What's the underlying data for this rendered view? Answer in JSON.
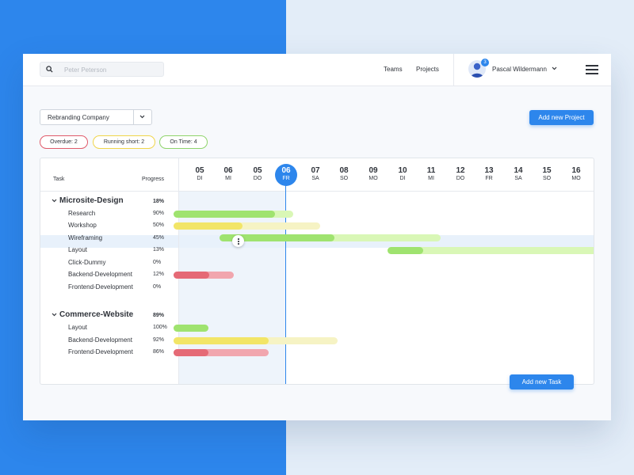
{
  "header": {
    "search": {
      "placeholder": "Peter Peterson"
    },
    "nav": [
      "Teams",
      "Projects"
    ],
    "user": {
      "name": "Pascal Wildermann",
      "notification_count": "3"
    }
  },
  "toolbar": {
    "project_select": "Rebranding Company",
    "add_project_label": "Add new Project"
  },
  "filters": [
    {
      "label": "Overdue: 2",
      "color": "#e05a6a"
    },
    {
      "label": "Running short: 2",
      "color": "#f0d54a"
    },
    {
      "label": "On Time: 4",
      "color": "#8fd46b"
    }
  ],
  "gantt": {
    "header": {
      "task": "Task",
      "progress": "Progress"
    },
    "days": [
      {
        "num": "05",
        "wd": "DI"
      },
      {
        "num": "06",
        "wd": "MI"
      },
      {
        "num": "05",
        "wd": "DO"
      },
      {
        "num": "06",
        "wd": "FR",
        "today": true
      },
      {
        "num": "07",
        "wd": "SA"
      },
      {
        "num": "08",
        "wd": "SO"
      },
      {
        "num": "09",
        "wd": "MO"
      },
      {
        "num": "10",
        "wd": "DI"
      },
      {
        "num": "11",
        "wd": "MI"
      },
      {
        "num": "12",
        "wd": "DO"
      },
      {
        "num": "13",
        "wd": "FR"
      },
      {
        "num": "14",
        "wd": "SA"
      },
      {
        "num": "15",
        "wd": "SO"
      },
      {
        "num": "16",
        "wd": "MO"
      }
    ],
    "groups": [
      {
        "title": "Microsite-Design",
        "progress": "18%",
        "tasks": [
          {
            "name": "Research",
            "progress": "90%"
          },
          {
            "name": "Workshop",
            "progress": "50%"
          },
          {
            "name": "Wireframing",
            "progress": "45%"
          },
          {
            "name": "Layout",
            "progress": "13%"
          },
          {
            "name": "Click-Dummy",
            "progress": "0%"
          },
          {
            "name": "Backend-Development",
            "progress": "12%"
          },
          {
            "name": "Frontend-Development",
            "progress": "0%"
          }
        ]
      },
      {
        "title": "Commerce-Website",
        "progress": "89%",
        "tasks": [
          {
            "name": "Layout",
            "progress": "100%"
          },
          {
            "name": "Backend-Development",
            "progress": "92%"
          },
          {
            "name": "Frontend-Development",
            "progress": "86%"
          }
        ]
      }
    ],
    "add_task_label": "Add new Task"
  },
  "colors": {
    "accent": "#2d86ec",
    "green_fill": "#9fe36f",
    "green_track": "#d9f7b6",
    "yellow_fill": "#f2e567",
    "yellow_track": "#f6f3c4",
    "red_fill": "#e56a76",
    "red_track": "#f1a6ae"
  }
}
